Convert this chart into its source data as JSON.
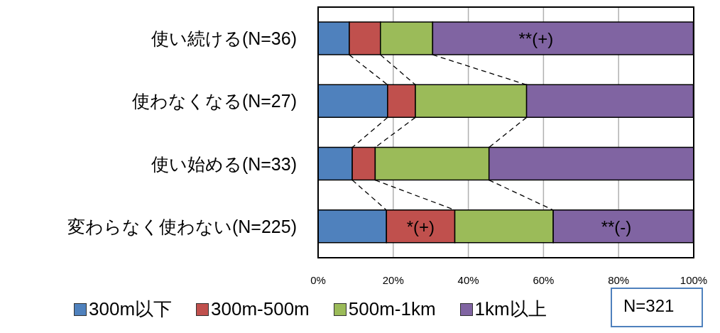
{
  "chart_data": {
    "type": "bar",
    "orientation": "horizontal",
    "stacked": true,
    "categories": [
      "使い続ける(N=36)",
      "使わなくなる(N=27)",
      "使い始める(N=33)",
      "変わらなく使わない(N=225)"
    ],
    "series": [
      {
        "name": "300m以下",
        "color": "#4f81bd",
        "values": [
          8.3,
          18.5,
          9.1,
          18.2
        ]
      },
      {
        "name": "300m-500m",
        "color": "#c0504d",
        "values": [
          8.3,
          7.4,
          6.1,
          18.2
        ]
      },
      {
        "name": "500m-1km",
        "color": "#9bbb59",
        "values": [
          13.9,
          29.6,
          30.3,
          26.2
        ]
      },
      {
        "name": "1km以上",
        "color": "#8064a2",
        "values": [
          69.4,
          44.4,
          54.5,
          37.3
        ]
      }
    ],
    "xlim": [
      0,
      100
    ],
    "xticks": [
      {
        "value": 0,
        "label": "0%"
      },
      {
        "value": 20,
        "label": "20%"
      },
      {
        "value": 40,
        "label": "40%"
      },
      {
        "value": 60,
        "label": "60%"
      },
      {
        "value": 80,
        "label": "80%"
      },
      {
        "value": 100,
        "label": "100%"
      }
    ],
    "grid": "x",
    "legend": "bottom",
    "annotations": [
      "**(+)",
      "*(+)",
      "**(-)",
      "N=321"
    ]
  }
}
